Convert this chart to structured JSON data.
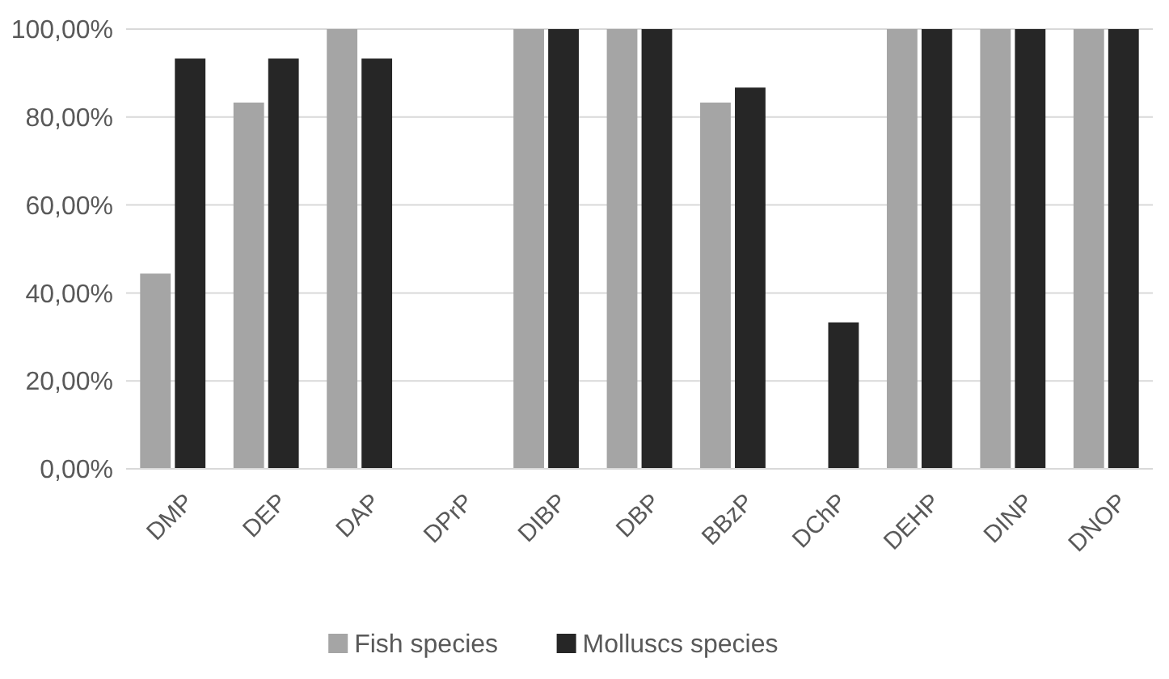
{
  "chart_data": {
    "type": "bar",
    "categories": [
      "DMP",
      "DEP",
      "DAP",
      "DPrP",
      "DIBP",
      "DBP",
      "BBzP",
      "DChP",
      "DEHP",
      "DINP",
      "DNOP"
    ],
    "series": [
      {
        "name": "Fish species",
        "color": "#a5a5a5",
        "values": [
          44.4,
          83.3,
          100,
          0,
          100,
          100,
          83.3,
          0,
          100,
          100,
          100
        ]
      },
      {
        "name": "Molluscs species",
        "color": "#262626",
        "values": [
          93.3,
          93.3,
          93.3,
          0,
          100,
          100,
          86.7,
          33.3,
          100,
          100,
          100
        ]
      }
    ],
    "ylim": [
      0,
      100
    ],
    "yticks": [
      {
        "value": 0,
        "label": "0,00%"
      },
      {
        "value": 20,
        "label": "20,00%"
      },
      {
        "value": 40,
        "label": "40,00%"
      },
      {
        "value": 60,
        "label": "60,00%"
      },
      {
        "value": 80,
        "label": "80,00%"
      },
      {
        "value": 100,
        "label": "100,00%"
      }
    ],
    "grid": "y",
    "legend": "bottom"
  }
}
